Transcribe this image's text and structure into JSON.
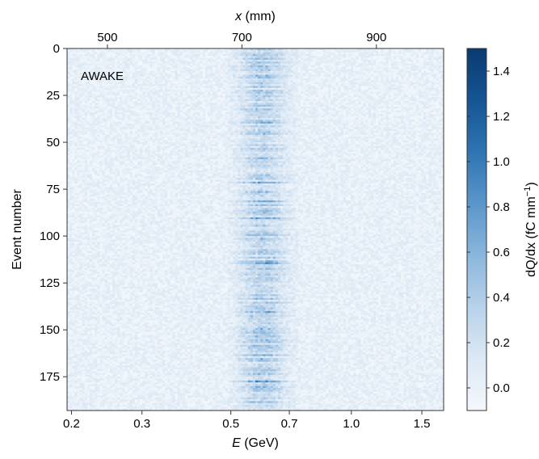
{
  "chart_data": {
    "type": "heatmap",
    "annotation": "AWAKE",
    "bottom_axis": {
      "label_var": "E",
      "label_unit": " (GeV)",
      "scale": "log",
      "range": [
        0.195,
        1.7
      ],
      "ticks": [
        0.2,
        0.3,
        0.5,
        0.7,
        1.0,
        1.5
      ],
      "tick_labels": [
        "0.2",
        "0.3",
        "0.5",
        "0.7",
        "1.0",
        "1.5"
      ]
    },
    "top_axis": {
      "label_var": "x",
      "label_unit": " (mm)",
      "range": [
        440,
        1000
      ],
      "ticks": [
        500,
        700,
        900
      ],
      "tick_labels": [
        "500",
        "700",
        "900"
      ]
    },
    "left_axis": {
      "label": "Event number",
      "range": [
        0,
        193
      ],
      "inverted": true,
      "ticks": [
        0,
        25,
        50,
        75,
        100,
        125,
        150,
        175
      ],
      "tick_labels": [
        "0",
        "25",
        "50",
        "75",
        "100",
        "125",
        "150",
        "175"
      ]
    },
    "colorbar": {
      "label_main": "dQ/dx (fC mm",
      "label_sup": "−1",
      "label_end": ")",
      "range": [
        -0.1,
        1.5
      ],
      "ticks": [
        0.0,
        0.2,
        0.4,
        0.6,
        0.8,
        1.0,
        1.2,
        1.4
      ],
      "tick_labels": [
        "0.0",
        "0.2",
        "0.4",
        "0.6",
        "0.8",
        "1.0",
        "1.2",
        "1.4"
      ],
      "colors": [
        "#f4f8fc",
        "#dce8f4",
        "#b8d2ea",
        "#8ab6dc",
        "#5a96ca",
        "#2f74b2",
        "#155594",
        "#0a3a70"
      ]
    },
    "signal_band_energy_GeV": [
      0.52,
      0.72
    ],
    "signal_center_energy_GeV": 0.6
  }
}
